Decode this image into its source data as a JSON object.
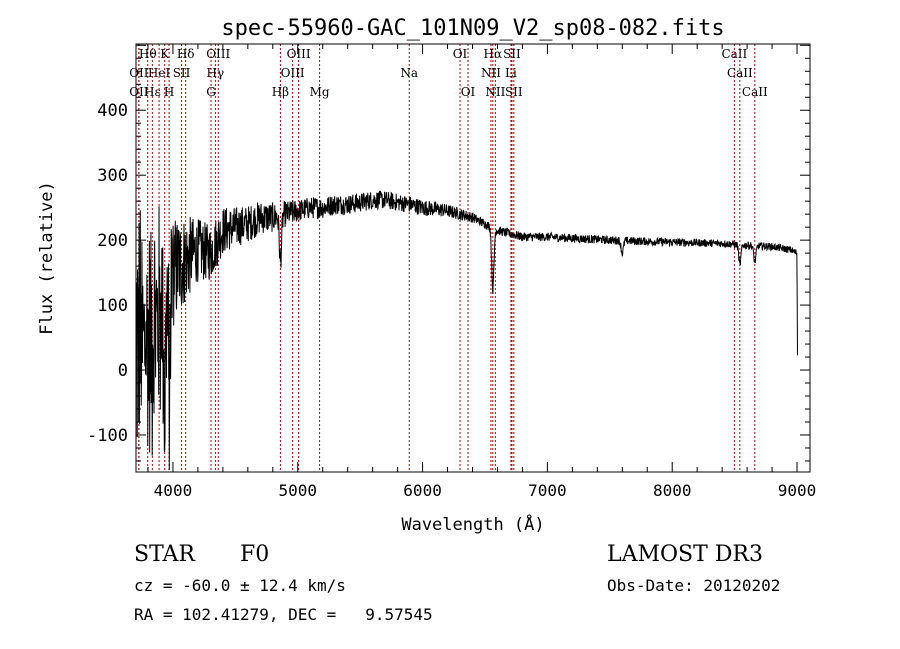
{
  "chart_data": {
    "type": "line",
    "title": "spec-55960-GAC_101N09_V2_sp08-082.fits",
    "xlabel": "Wavelength (Å)",
    "ylabel": "Flux (relative)",
    "xlim": [
      3704,
      9104
    ],
    "ylim": [
      -157,
      502
    ],
    "xticks": [
      4000,
      5000,
      6000,
      7000,
      8000,
      9000
    ],
    "yticks": [
      -100,
      0,
      100,
      200,
      300,
      400
    ],
    "grid": false,
    "series": [
      {
        "name": "flux",
        "color": "#000000",
        "continuum_wavelength": [
          3710,
          3750,
          3800,
          3850,
          3900,
          3950,
          4000,
          4100,
          4200,
          4300,
          4400,
          4500,
          4600,
          4700,
          4800,
          4900,
          5000,
          5100,
          5200,
          5300,
          5400,
          5500,
          5600,
          5700,
          5800,
          5900,
          6000,
          6100,
          6200,
          6300,
          6400,
          6500,
          6600,
          6700,
          6800,
          7000,
          7200,
          7500,
          7800,
          8000,
          8200,
          8400,
          8600,
          8800,
          8950,
          9000,
          9004
        ],
        "continuum_flux": [
          60,
          40,
          50,
          60,
          90,
          100,
          150,
          170,
          185,
          180,
          215,
          220,
          225,
          235,
          235,
          240,
          245,
          250,
          250,
          255,
          255,
          258,
          262,
          262,
          258,
          255,
          250,
          248,
          245,
          240,
          235,
          225,
          215,
          210,
          205,
          205,
          203,
          200,
          198,
          197,
          196,
          195,
          192,
          190,
          185,
          180,
          0
        ],
        "noise_wavelength": [
          3704,
          3950,
          4200,
          4500,
          5000,
          6000,
          6500,
          9000
        ],
        "noise_amplitude": [
          180,
          140,
          70,
          45,
          25,
          18,
          10,
          8
        ],
        "absorption_lines": [
          {
            "wavelength": 4861,
            "depth": 70
          },
          {
            "wavelength": 6563,
            "depth": 95
          },
          {
            "wavelength": 8542,
            "depth": 30
          },
          {
            "wavelength": 8662,
            "depth": 25
          },
          {
            "wavelength": 7600,
            "depth": 20
          },
          {
            "wavelength": 3969,
            "depth": 180
          },
          {
            "wavelength": 3934,
            "depth": 150
          }
        ]
      }
    ],
    "line_markers": [
      {
        "label": "Hθ",
        "wavelength": 3798,
        "row": 1
      },
      {
        "label": "K",
        "wavelength": 3934,
        "row": 1
      },
      {
        "label": "Hδ",
        "wavelength": 4102,
        "row": 1
      },
      {
        "label": "OIII",
        "wavelength": 4363,
        "row": 1
      },
      {
        "label": "OIII",
        "wavelength": 5007,
        "row": 1
      },
      {
        "label": "OI",
        "wavelength": 6300,
        "row": 1
      },
      {
        "label": "Hα",
        "wavelength": 6563,
        "row": 1
      },
      {
        "label": "SII",
        "wavelength": 6716,
        "row": 1
      },
      {
        "label": "CaII",
        "wavelength": 8498,
        "row": 1
      },
      {
        "label": "OII",
        "wavelength": 3727,
        "row": 2
      },
      {
        "label": "HeI",
        "wavelength": 3889,
        "row": 2
      },
      {
        "label": "SII",
        "wavelength": 4069,
        "row": 2
      },
      {
        "label": "Hγ",
        "wavelength": 4340,
        "row": 2
      },
      {
        "label": "OIII",
        "wavelength": 4959,
        "row": 2
      },
      {
        "label": "Na",
        "wavelength": 5893,
        "row": 2
      },
      {
        "label": "NII",
        "wavelength": 6548,
        "row": 2
      },
      {
        "label": "Li",
        "wavelength": 6708,
        "row": 2
      },
      {
        "label": "CaII",
        "wavelength": 8542,
        "row": 2
      },
      {
        "label": "OII",
        "wavelength": 3727,
        "row": 3
      },
      {
        "label": "Hε",
        "wavelength": 3835,
        "row": 3
      },
      {
        "label": "H",
        "wavelength": 3969,
        "row": 3
      },
      {
        "label": "G",
        "wavelength": 4305,
        "row": 3
      },
      {
        "label": "Hβ",
        "wavelength": 4861,
        "row": 3
      },
      {
        "label": "Mg",
        "wavelength": 5175,
        "row": 3
      },
      {
        "label": "OI",
        "wavelength": 6364,
        "row": 3
      },
      {
        "label": "NII",
        "wavelength": 6583,
        "row": 3
      },
      {
        "label": "SII",
        "wavelength": 6731,
        "row": 3
      },
      {
        "label": "CaII",
        "wavelength": 8662,
        "row": 3
      }
    ],
    "marker_color": "#b00000"
  },
  "info": {
    "class": "STAR",
    "subclass": "F0",
    "cz": "cz = -60.0 ± 12.4 km/s",
    "coords": "RA = 102.41279, DEC =   9.57545",
    "survey": "LAMOST DR3",
    "obs_date": "Obs-Date: 20120202"
  }
}
